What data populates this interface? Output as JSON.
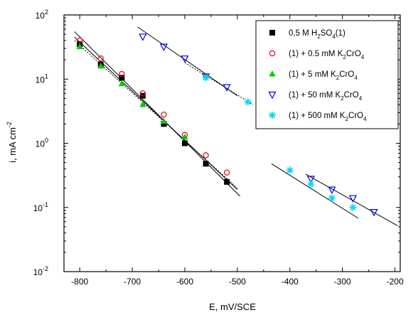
{
  "chart_data": {
    "type": "scatter",
    "title": "",
    "xlabel": "E, mV/SCE",
    "ylabel": "i, mA cm",
    "ylabel_exp": "-2",
    "xlim": [
      -830,
      -190
    ],
    "ylim": [
      0.01,
      100
    ],
    "yscale": "log",
    "xticks": [
      -800,
      -700,
      -600,
      -500,
      -400,
      -300,
      -200
    ],
    "xtick_labels": [
      "-800",
      "-700",
      "-600",
      "-500",
      "-400",
      "-300",
      "-200"
    ],
    "yticks": [
      0.01,
      0.1,
      1,
      10,
      100
    ],
    "ytick_mantissa": [
      "10",
      "10",
      "10",
      "10",
      "10"
    ],
    "ytick_exps": [
      "-2",
      "-1",
      "0",
      "1",
      "2"
    ],
    "grid": false,
    "legend_position": "top-right",
    "series": [
      {
        "name": "0,5 M H2SO4(1)",
        "legend_parts": [
          "0,5 M H",
          "2",
          "SO",
          "4",
          "(1)"
        ],
        "marker": "square-filled",
        "color": "#000000",
        "x": [
          -800,
          -760,
          -720,
          -680,
          -640,
          -600,
          -560,
          -520
        ],
        "y": [
          35,
          17,
          10.5,
          5.5,
          2.0,
          1.0,
          0.48,
          0.25
        ]
      },
      {
        "name": "(1) + 0.5 mM K2CrO4",
        "legend_parts": [
          "(1) + 0.5 mM K",
          "2",
          "CrO",
          "4",
          ""
        ],
        "marker": "circle-open",
        "color": "#e8001c",
        "x": [
          -800,
          -760,
          -720,
          -680,
          -640,
          -600,
          -560,
          -520
        ],
        "y": [
          40,
          21,
          12,
          6.0,
          2.8,
          1.35,
          0.65,
          0.35
        ]
      },
      {
        "name": "(1) + 5 mM K2CrO4",
        "legend_parts": [
          "(1) + 5 mM K",
          "2",
          "CrO",
          "4",
          ""
        ],
        "marker": "triangle-up-filled",
        "color": "#00cc00",
        "x": [
          -800,
          -760,
          -720,
          -680,
          -640,
          -600
        ],
        "y": [
          32,
          16,
          8.5,
          4.0,
          2.2,
          1.25
        ]
      },
      {
        "name": "(1) + 50 mM K2CrO4",
        "legend_parts": [
          "(1) + 50 mM K",
          "2",
          "CrO",
          "4",
          ""
        ],
        "marker": "triangle-down-open",
        "color": "#0000ee",
        "x": [
          -680,
          -640,
          -600,
          -560,
          -520,
          -360,
          -320,
          -280,
          -240
        ],
        "y": [
          46,
          32,
          21,
          11,
          7.5,
          0.28,
          0.19,
          0.14,
          0.085
        ]
      },
      {
        "name": "(1) + 500 mM K2CrO4",
        "legend_parts": [
          "(1) + 500 mM K",
          "2",
          "CrO",
          "4",
          ""
        ],
        "marker": "star",
        "color": "#00d8f0",
        "x": [
          -560,
          -480,
          -400,
          -360,
          -320,
          -280
        ],
        "y": [
          10.5,
          4.4,
          0.38,
          0.23,
          0.14,
          0.1
        ]
      }
    ],
    "fit_lines": [
      {
        "style": "solid",
        "x": [
          -810,
          -495
        ],
        "y": [
          55,
          0.15
        ]
      },
      {
        "style": "solid",
        "x": [
          -810,
          -500
        ],
        "y": [
          45,
          0.19
        ]
      },
      {
        "style": "dotted",
        "x": [
          -810,
          -500
        ],
        "y": [
          40,
          0.2
        ]
      },
      {
        "style": "solid",
        "x": [
          -690,
          -500
        ],
        "y": [
          65,
          5.5
        ]
      },
      {
        "style": "dotted",
        "x": [
          -600,
          -470
        ],
        "y": [
          18,
          4.0
        ]
      },
      {
        "style": "solid",
        "x": [
          -435,
          -270
        ],
        "y": [
          0.48,
          0.068
        ]
      },
      {
        "style": "solid",
        "x": [
          -370,
          -195
        ],
        "y": [
          0.33,
          0.052
        ]
      }
    ]
  }
}
